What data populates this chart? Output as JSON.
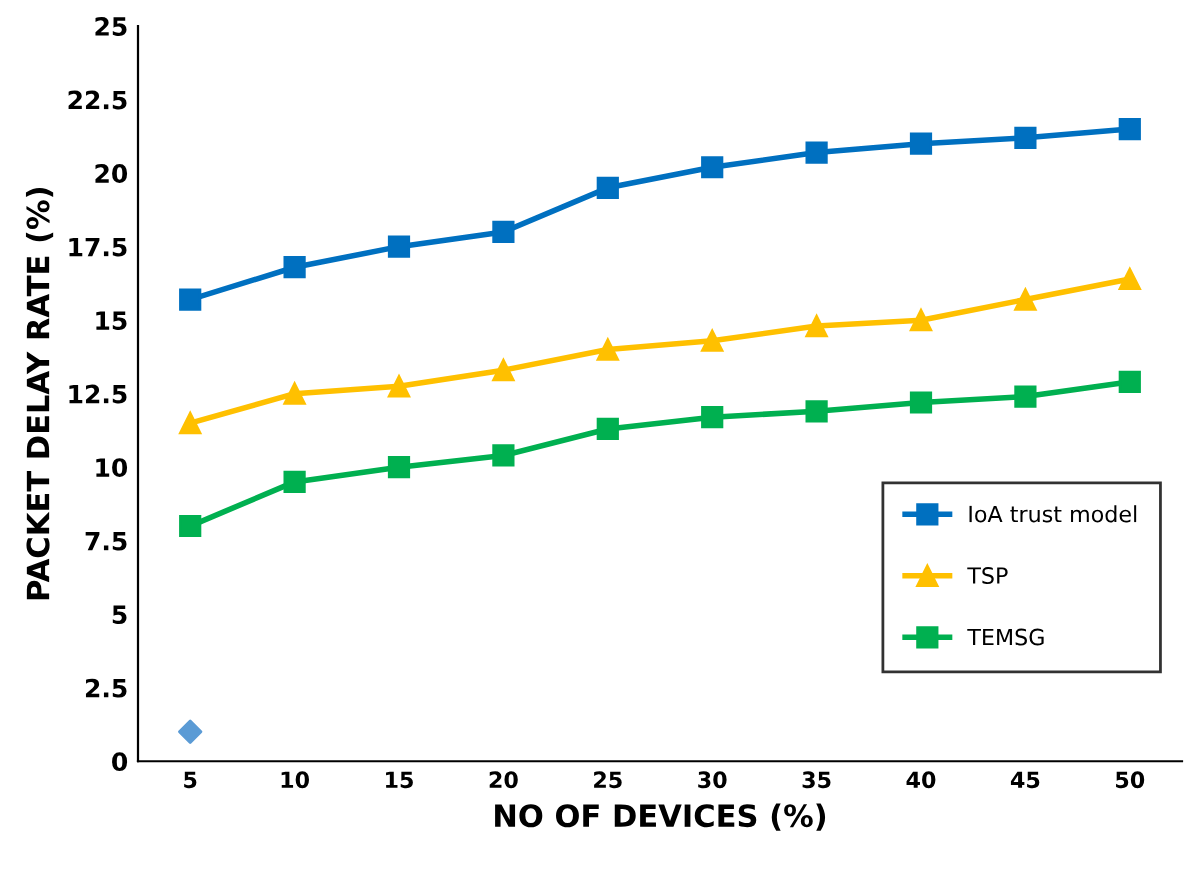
{
  "chart_data": {
    "type": "line",
    "xlabel": "NO OF DEVICES (%)",
    "ylabel": "PACKET DELAY RATE (%)",
    "categories": [
      "5",
      "10",
      "15",
      "20",
      "25",
      "30",
      "35",
      "40",
      "45",
      "50"
    ],
    "series": [
      {
        "name": "IoA trust model",
        "color": "#0070c0",
        "marker": "square",
        "values": [
          15.7,
          16.8,
          17.5,
          18,
          19.5,
          20.2,
          20.7,
          21,
          21.2,
          21.5
        ]
      },
      {
        "name": "TSP",
        "color": "#ffc000",
        "marker": "triangle",
        "values": [
          11.5,
          12.5,
          12.75,
          13.3,
          14,
          14.3,
          14.8,
          15,
          15.7,
          16.4
        ]
      },
      {
        "name": "TEMSG",
        "color": "#00b050",
        "marker": "square",
        "values": [
          8,
          9.5,
          10,
          10.4,
          11.3,
          11.7,
          11.9,
          12.2,
          12.4,
          12.9
        ]
      },
      {
        "type": "scatter",
        "color": "#5b9bd5",
        "marker": "diamond",
        "values": [
          1,
          null,
          null,
          null,
          null,
          null,
          null,
          null,
          null,
          null
        ]
      }
    ],
    "ylim": [
      0,
      25
    ],
    "yticks": [
      0,
      2.5,
      5,
      7.5,
      10,
      12.5,
      15,
      17.5,
      20,
      22.5,
      25
    ],
    "grid": false,
    "legend": "right"
  }
}
